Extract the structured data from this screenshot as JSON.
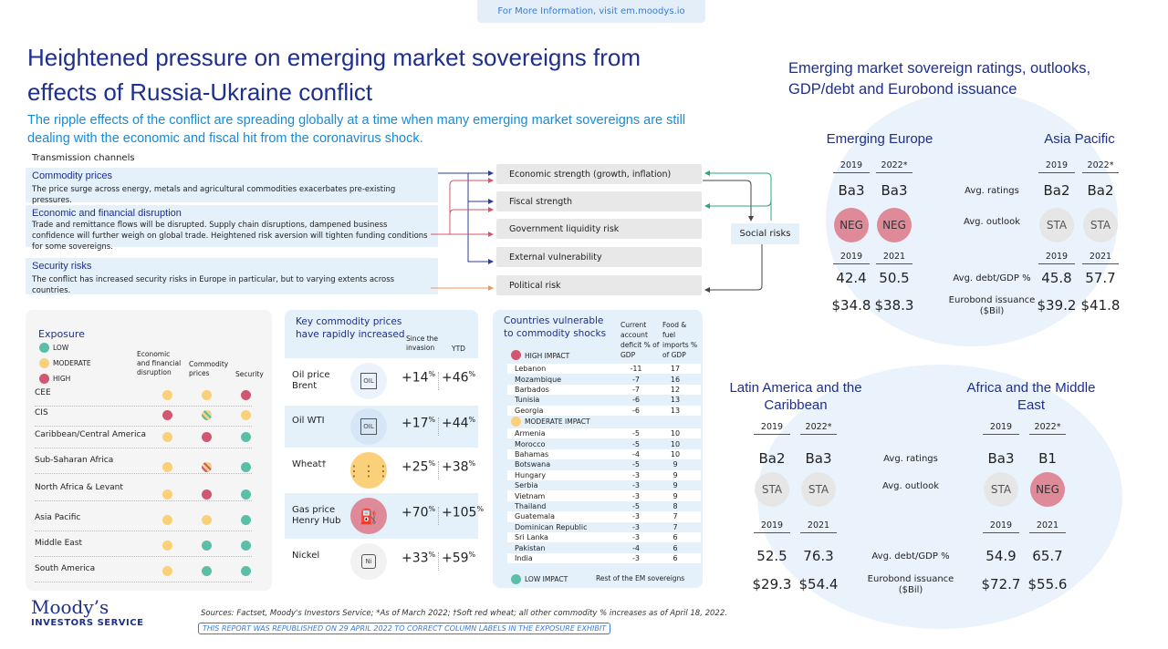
{
  "banner": {
    "prefix": "For More Information,",
    "link": "visit em.moodys.io"
  },
  "title": "Heightened pressure on emerging market sovereigns from effects of Russia-Ukraine conflict",
  "subtitle": "The ripple effects of the conflict are spreading globally at a time when many emerging market sovereigns are still dealing with the economic and fiscal hit from the coronavirus shock.",
  "transmission": {
    "heading": "Transmission channels",
    "channels": [
      {
        "title": "Commodity prices",
        "text": "The price surge across energy, metals and agricultural  commodities exacerbates pre-existing pressures."
      },
      {
        "title": "Economic and financial disruption",
        "text": "Trade and remittance flows will be disrupted. Supply chain disruptions, dampened business confidence will further weigh on global trade. Heightened risk aversion will tighten funding conditions for some sovereigns."
      },
      {
        "title": "Security risks",
        "text": "The conflict has increased security risks in Europe in particular, but to varying extents across countries."
      }
    ],
    "risks": [
      "Economic strength (growth, inflation)",
      "Fiscal strength",
      "Government liquidity risk",
      "External vulnerability",
      "Political risk"
    ],
    "social": "Social risks"
  },
  "colors": {
    "navy": "#1e2f8c",
    "low": "#5bbfa8",
    "moderate": "#fbd07a",
    "high": "#d2566f",
    "neg": "#de8a98",
    "sta": "#e6e6e6"
  },
  "exposure": {
    "title": "Exposure",
    "legend": [
      "LOW",
      "MODERATE",
      "HIGH"
    ],
    "columns": [
      "Economic and financial disruption",
      "Commodity prices",
      "Security"
    ],
    "rows": [
      {
        "name": "CEE",
        "levels": [
          "moderate",
          "moderate",
          "high"
        ]
      },
      {
        "name": "CIS",
        "levels": [
          "high",
          "moderate/low",
          "moderate"
        ]
      },
      {
        "name": "Caribbean/Central America",
        "levels": [
          "moderate",
          "high",
          "low"
        ]
      },
      {
        "name": "Sub-Saharan Africa",
        "levels": [
          "moderate",
          "moderate/high",
          "low"
        ]
      },
      {
        "name": "North Africa & Levant",
        "levels": [
          "moderate",
          "high",
          "low"
        ]
      },
      {
        "name": "Asia Pacific",
        "levels": [
          "moderate",
          "moderate",
          "low"
        ]
      },
      {
        "name": "Middle East",
        "levels": [
          "moderate",
          "low",
          "low"
        ]
      },
      {
        "name": "South America",
        "levels": [
          "moderate",
          "low",
          "low"
        ]
      }
    ]
  },
  "commodities": {
    "title": "Key commodity prices have rapidly increased",
    "col_since": "Since the invasion",
    "col_ytd": "YTD",
    "rows": [
      {
        "name": "Oil price Brent",
        "icon": "oil-barrel-icon",
        "since": "+14",
        "ytd": "+46",
        "bg": "#eaf3fb"
      },
      {
        "name": "Oil WTI",
        "icon": "oil-barrel-icon",
        "since": "+17",
        "ytd": "+44",
        "bg": "#d6e6f6"
      },
      {
        "name": "Wheat†",
        "icon": "wheat-icon",
        "since": "+25",
        "ytd": "+38",
        "bg": "#fbd07a"
      },
      {
        "name": "Gas price Henry Hub",
        "icon": "gas-tank-icon",
        "since": "+70",
        "ytd": "+105",
        "bg": "#de8a98"
      },
      {
        "name": "Nickel",
        "icon": "nickel-icon",
        "since": "+33",
        "ytd": "+59",
        "bg": "#f2f2f2"
      }
    ],
    "unit": "%",
    "oil_label": "OIL",
    "ni_label": "Ni"
  },
  "countries": {
    "title": "Countries vulnerable to commodity shocks",
    "col1": "Current account deficit % of GDP",
    "col2": "Food & fuel imports % of GDP",
    "high_label": "HIGH IMPACT",
    "moderate_label": "MODERATE IMPACT",
    "low_label": "LOW IMPACT",
    "low_text": "Rest of the EM sovereigns",
    "high": [
      [
        "Lebanon",
        "-11",
        "17"
      ],
      [
        "Mozambique",
        "-7",
        "16"
      ],
      [
        "Barbados",
        "-7",
        "12"
      ],
      [
        "Tunisia",
        "-6",
        "13"
      ],
      [
        "Georgia",
        "-6",
        "13"
      ]
    ],
    "moderate": [
      [
        "Armenia",
        "-5",
        "10"
      ],
      [
        "Morocco",
        "-5",
        "10"
      ],
      [
        "Bahamas",
        "-4",
        "10"
      ],
      [
        "Botswana",
        "-5",
        "9"
      ],
      [
        "Hungary",
        "-3",
        "9"
      ],
      [
        "Serbia",
        "-3",
        "9"
      ],
      [
        "Vietnam",
        "-3",
        "9"
      ],
      [
        "Thailand",
        "-5",
        "8"
      ],
      [
        "Guatemala",
        "-3",
        "7"
      ],
      [
        "Dominican Republic",
        "-3",
        "7"
      ],
      [
        "Sri Lanka",
        "-3",
        "6"
      ],
      [
        "Pakistan",
        "-4",
        "6"
      ],
      [
        "India",
        "-3",
        "6"
      ]
    ]
  },
  "ratings": {
    "title": "Emerging market sovereign ratings, outlooks, GDP/debt and Eurobond issuance",
    "labels": {
      "ratings": "Avg. ratings",
      "outlook": "Avg. outlook",
      "debt": "Avg. debt/GDP %",
      "eurobond": "Eurobond  issuance ($Bil)"
    },
    "regions": [
      {
        "name": "Emerging Europe",
        "years1": [
          "2019",
          "2022*"
        ],
        "ratings": [
          "Ba3",
          "Ba3"
        ],
        "outlook": [
          "NEG",
          "NEG"
        ],
        "years2": [
          "2019",
          "2021"
        ],
        "debt": [
          "42.4",
          "50.5"
        ],
        "eurobond": [
          "$34.8",
          "$38.3"
        ]
      },
      {
        "name": "Asia Pacific",
        "years1": [
          "2019",
          "2022*"
        ],
        "ratings": [
          "Ba2",
          "Ba2"
        ],
        "outlook": [
          "STA",
          "STA"
        ],
        "years2": [
          "2019",
          "2021"
        ],
        "debt": [
          "45.8",
          "57.7"
        ],
        "eurobond": [
          "$39.2",
          "$41.8"
        ]
      },
      {
        "name": "Latin America and the Caribbean",
        "years1": [
          "2019",
          "2022*"
        ],
        "ratings": [
          "Ba2",
          "Ba3"
        ],
        "outlook": [
          "STA",
          "STA"
        ],
        "years2": [
          "2019",
          "2021"
        ],
        "debt": [
          "52.5",
          "76.3"
        ],
        "eurobond": [
          "$29.3",
          "$54.4"
        ]
      },
      {
        "name": "Africa and the Middle East",
        "years1": [
          "2019",
          "2022*"
        ],
        "ratings": [
          "Ba3",
          "B1"
        ],
        "outlook": [
          "STA",
          "NEG"
        ],
        "years2": [
          "2019",
          "2021"
        ],
        "debt": [
          "54.9",
          "65.7"
        ],
        "eurobond": [
          "$72.7",
          "$55.6"
        ]
      }
    ]
  },
  "footer": {
    "logo_top": "Moody’s",
    "logo_bottom": "INVESTORS SERVICE",
    "sources": "Sources: Factset, Moody's Investors Service; *As of March 2022; †Soft red wheat; all other commodity % increases as of April 18, 2022.",
    "republished": "THIS REPORT WAS REPUBLISHED ON 29 APRIL 2022 TO CORRECT COLUMN LABELS IN THE EXPOSURE EXHIBIT"
  }
}
